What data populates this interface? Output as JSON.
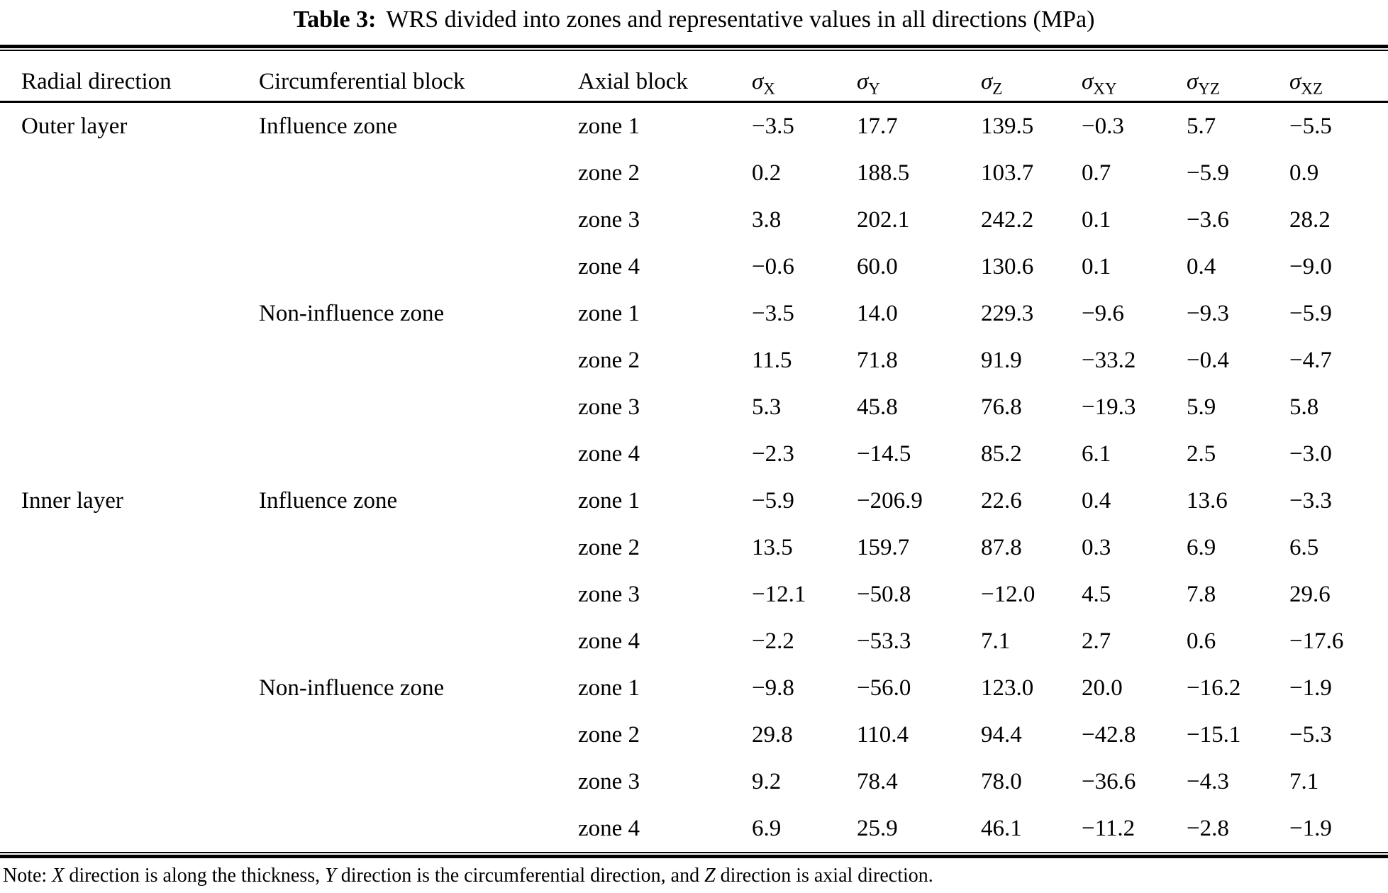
{
  "caption": {
    "label": "Table 3:",
    "text": "WRS divided into zones and representative values in all directions (MPa)"
  },
  "header": {
    "radial": "Radial direction",
    "circumferential": "Circumferential block",
    "axial": "Axial block",
    "sigmas": [
      {
        "base": "σ",
        "sub": "X"
      },
      {
        "base": "σ",
        "sub": "Y"
      },
      {
        "base": "σ",
        "sub": "Z"
      },
      {
        "base": "σ",
        "sub": "XY"
      },
      {
        "base": "σ",
        "sub": "YZ"
      },
      {
        "base": "σ",
        "sub": "XZ"
      }
    ]
  },
  "rows": [
    {
      "radial": "Outer layer",
      "circ": "Influence zone",
      "axial": "zone 1",
      "v": [
        "−3.5",
        "17.7",
        "139.5",
        "−0.3",
        "5.7",
        "−5.5"
      ]
    },
    {
      "radial": "",
      "circ": "",
      "axial": "zone 2",
      "v": [
        "0.2",
        "188.5",
        "103.7",
        "0.7",
        "−5.9",
        "0.9"
      ]
    },
    {
      "radial": "",
      "circ": "",
      "axial": "zone 3",
      "v": [
        "3.8",
        "202.1",
        "242.2",
        "0.1",
        "−3.6",
        "28.2"
      ]
    },
    {
      "radial": "",
      "circ": "",
      "axial": "zone 4",
      "v": [
        "−0.6",
        "60.0",
        "130.6",
        "0.1",
        "0.4",
        "−9.0"
      ]
    },
    {
      "radial": "",
      "circ": "Non-influence zone",
      "axial": "zone 1",
      "v": [
        "−3.5",
        "14.0",
        "229.3",
        "−9.6",
        "−9.3",
        "−5.9"
      ]
    },
    {
      "radial": "",
      "circ": "",
      "axial": "zone 2",
      "v": [
        "11.5",
        "71.8",
        "91.9",
        "−33.2",
        "−0.4",
        "−4.7"
      ]
    },
    {
      "radial": "",
      "circ": "",
      "axial": "zone 3",
      "v": [
        "5.3",
        "45.8",
        "76.8",
        "−19.3",
        "5.9",
        "5.8"
      ]
    },
    {
      "radial": "",
      "circ": "",
      "axial": "zone 4",
      "v": [
        "−2.3",
        "−14.5",
        "85.2",
        "6.1",
        "2.5",
        "−3.0"
      ]
    },
    {
      "radial": "Inner layer",
      "circ": "Influence zone",
      "axial": "zone 1",
      "v": [
        "−5.9",
        "−206.9",
        "22.6",
        "0.4",
        "13.6",
        "−3.3"
      ]
    },
    {
      "radial": "",
      "circ": "",
      "axial": "zone 2",
      "v": [
        "13.5",
        "159.7",
        "87.8",
        "0.3",
        "6.9",
        "6.5"
      ]
    },
    {
      "radial": "",
      "circ": "",
      "axial": "zone 3",
      "v": [
        "−12.1",
        "−50.8",
        "−12.0",
        "4.5",
        "7.8",
        "29.6"
      ]
    },
    {
      "radial": "",
      "circ": "",
      "axial": "zone 4",
      "v": [
        "−2.2",
        "−53.3",
        "7.1",
        "2.7",
        "0.6",
        "−17.6"
      ]
    },
    {
      "radial": "",
      "circ": "Non-influence zone",
      "axial": "zone 1",
      "v": [
        "−9.8",
        "−56.0",
        "123.0",
        "20.0",
        "−16.2",
        "−1.9"
      ]
    },
    {
      "radial": "",
      "circ": "",
      "axial": "zone 2",
      "v": [
        "29.8",
        "110.4",
        "94.4",
        "−42.8",
        "−15.1",
        "−5.3"
      ]
    },
    {
      "radial": "",
      "circ": "",
      "axial": "zone 3",
      "v": [
        "9.2",
        "78.4",
        "78.0",
        "−36.6",
        "−4.3",
        "7.1"
      ]
    },
    {
      "radial": "",
      "circ": "",
      "axial": "zone 4",
      "v": [
        "6.9",
        "25.9",
        "46.1",
        "−11.2",
        "−2.8",
        "−1.9"
      ]
    }
  ],
  "note": {
    "parts": [
      "Note: ",
      "X",
      " direction is along the thickness, ",
      "Y",
      " direction is the circumferential direction, and ",
      "Z",
      " direction is axial direction."
    ]
  }
}
